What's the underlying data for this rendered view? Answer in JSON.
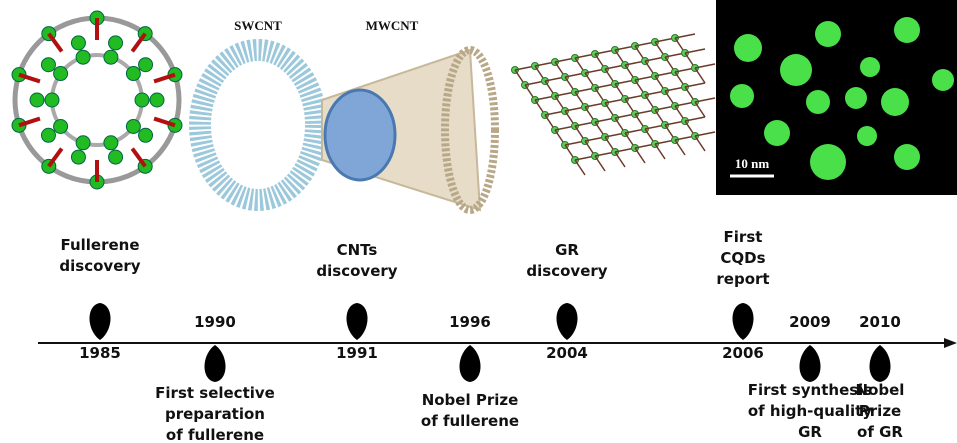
{
  "images": {
    "swcnt": "SWCNT",
    "mwcnt": "MWCNT",
    "scale_bar": "10 nm"
  },
  "events": [
    {
      "year": "1985",
      "label": [
        "Fullerene",
        "discovery"
      ]
    },
    {
      "year": "1990",
      "label": [
        "First selective",
        "preparation",
        "of fullerene"
      ]
    },
    {
      "year": "1991",
      "label": [
        "CNTs",
        "discovery"
      ]
    },
    {
      "year": "1996",
      "label": [
        "Nobel Prize",
        "of fullerene"
      ]
    },
    {
      "year": "2004",
      "label": [
        "GR",
        "discovery"
      ]
    },
    {
      "year": "2006",
      "label": [
        "First",
        "CQDs",
        "report"
      ]
    },
    {
      "year": "2009",
      "label": [
        "First synthesis",
        "of high-quality",
        "GR"
      ]
    },
    {
      "year": "2010",
      "label": [
        "Nobel",
        "Prize",
        "of GR"
      ]
    }
  ]
}
